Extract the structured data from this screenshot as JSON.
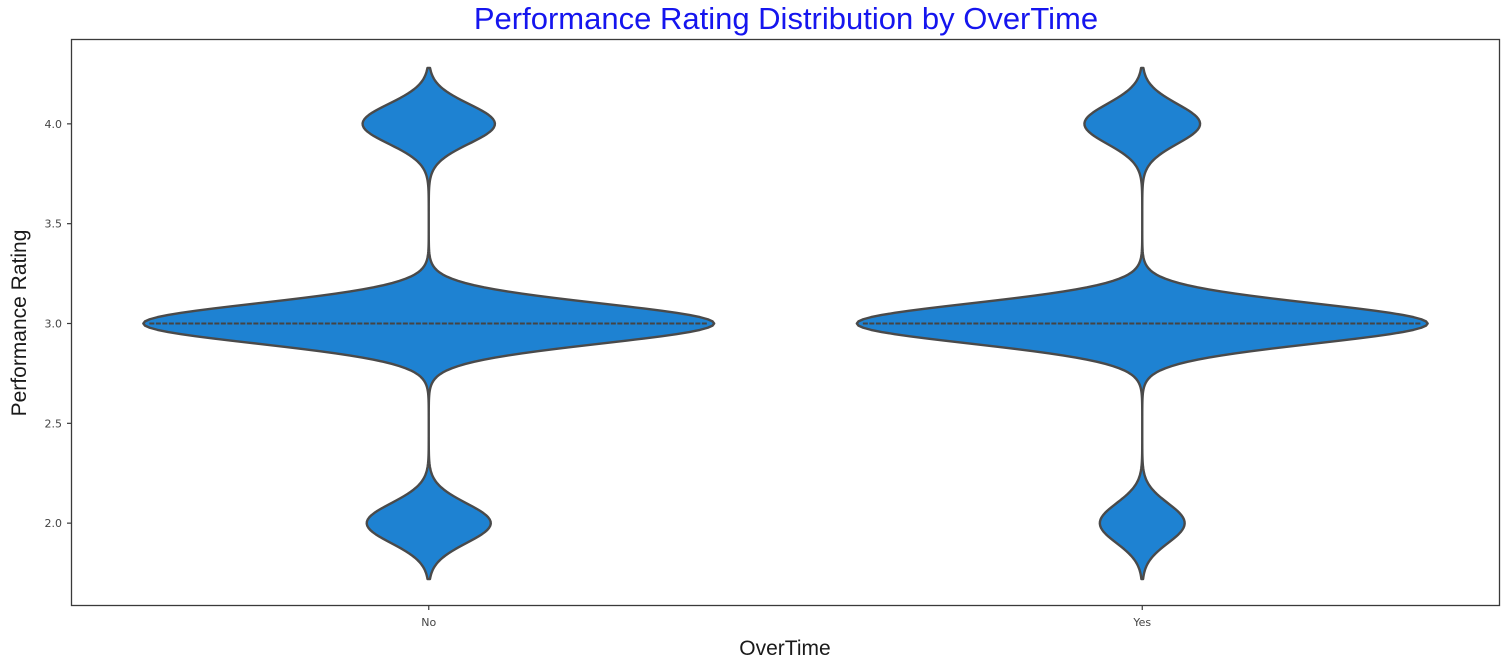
{
  "chart_data": {
    "type": "violin",
    "title": "Performance Rating Distribution by OverTime",
    "xlabel": "OverTime",
    "ylabel": "Performance Rating",
    "categories": [
      "No",
      "Yes"
    ],
    "ylim": [
      1.59,
      4.42
    ],
    "yticks": [
      2.0,
      2.5,
      3.0,
      3.5,
      4.0
    ],
    "ytick_labels": [
      "2.0",
      "2.5",
      "3.0",
      "3.5",
      "4.0"
    ],
    "distribution": {
      "values": [
        2,
        3,
        4
      ],
      "No": {
        "proportions": [
          0.15,
          0.69,
          0.16
        ],
        "range": [
          1.72,
          4.28
        ],
        "median": 3.0
      },
      "Yes": {
        "proportions": [
          0.11,
          0.74,
          0.15
        ],
        "range": [
          1.72,
          4.28
        ],
        "median": 3.0
      }
    },
    "violin_color": "#1e82d2",
    "edge_color": "#4a4a4a",
    "title_color": "#1515ee",
    "grid": false,
    "legend": "none"
  }
}
